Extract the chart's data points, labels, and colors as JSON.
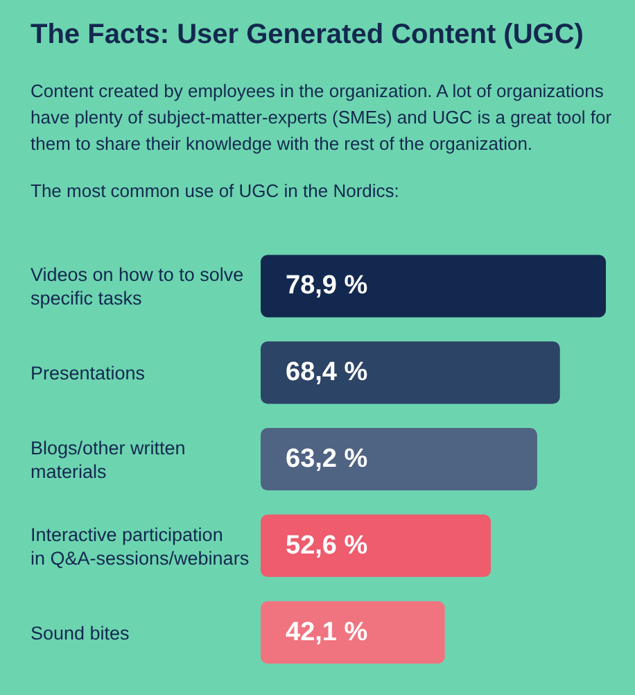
{
  "chart_data": {
    "type": "bar",
    "orientation": "horizontal",
    "title": "The Facts: User Generated Content (UGC)",
    "subtitle": "Content created by employees in the organization. A lot of organizations have plenty of subject-matter-experts (SMEs) and UGC is a great tool for them to share their knowledge with the rest of the organization.",
    "annotations": [
      "The most common use of UGC in the Nordics:"
    ],
    "categories": [
      "Videos on how to to solve specific tasks",
      "Presentations",
      "Blogs/other written materials",
      "Interactive participation in Q&A-sessions/webinars",
      "Sound bites"
    ],
    "values": [
      78.9,
      68.4,
      63.2,
      52.6,
      42.1
    ],
    "value_labels": [
      "78,9 %",
      "68,4 %",
      "63,2 %",
      "52,6 %",
      "42,1 %"
    ],
    "colors": [
      "#13284f",
      "#2c4466",
      "#4f6383",
      "#ee5c6e",
      "#f07480"
    ]
  }
}
